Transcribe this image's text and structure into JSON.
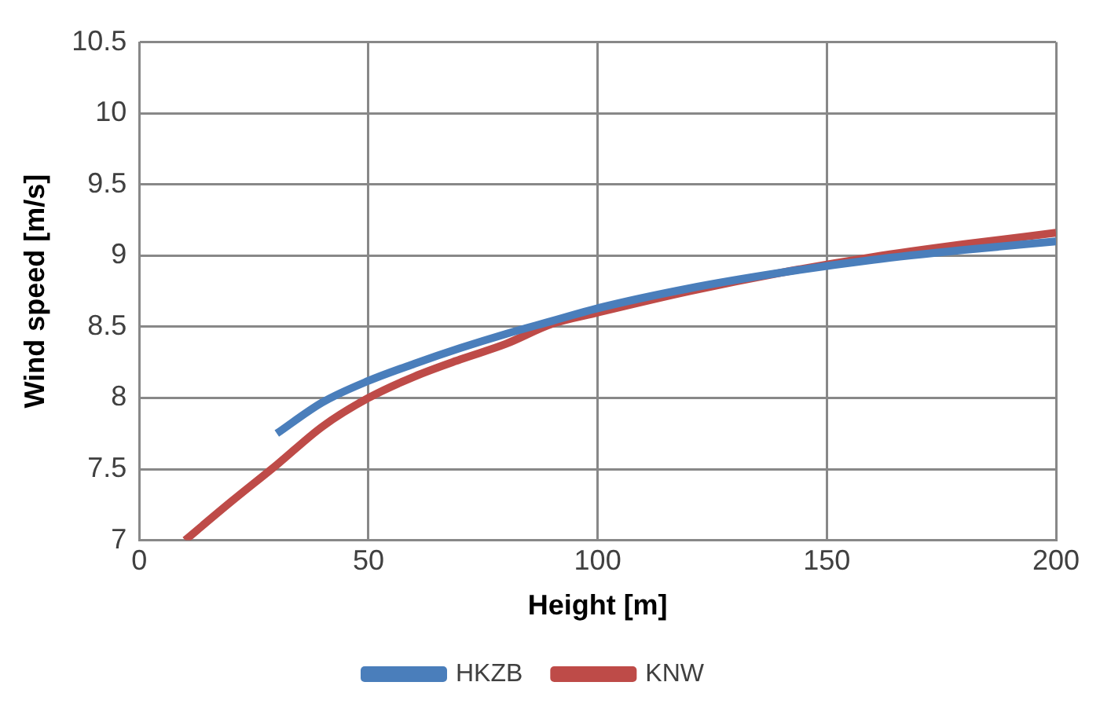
{
  "chart_data": {
    "type": "line",
    "xlabel": "Height [m]",
    "ylabel": "Wind speed [m/s]",
    "xlim": [
      0,
      200
    ],
    "xticks": [
      0,
      50,
      100,
      150,
      200
    ],
    "ylim": [
      7,
      10.5
    ],
    "yticks": [
      7,
      7.5,
      8,
      8.5,
      9,
      9.5,
      10,
      10.5
    ],
    "grid": true,
    "legend": "bottom",
    "marker": "none",
    "line_style": "solid",
    "series": [
      {
        "name": "HKZB",
        "color": "#4a7ebb",
        "x": [
          30,
          40,
          50,
          60,
          70,
          80,
          90,
          100,
          120,
          140,
          160,
          180,
          200
        ],
        "values": [
          7.75,
          7.97,
          8.12,
          8.24,
          8.35,
          8.45,
          8.54,
          8.63,
          8.77,
          8.88,
          8.97,
          9.04,
          9.1
        ]
      },
      {
        "name": "KNW",
        "color": "#be4b48",
        "x": [
          10,
          20,
          30,
          40,
          50,
          60,
          70,
          80,
          90,
          100,
          120,
          140,
          160,
          180,
          200
        ],
        "values": [
          7.0,
          7.27,
          7.53,
          7.8,
          8.0,
          8.15,
          8.27,
          8.38,
          8.52,
          8.6,
          8.75,
          8.88,
          8.99,
          9.08,
          9.16
        ]
      }
    ]
  }
}
